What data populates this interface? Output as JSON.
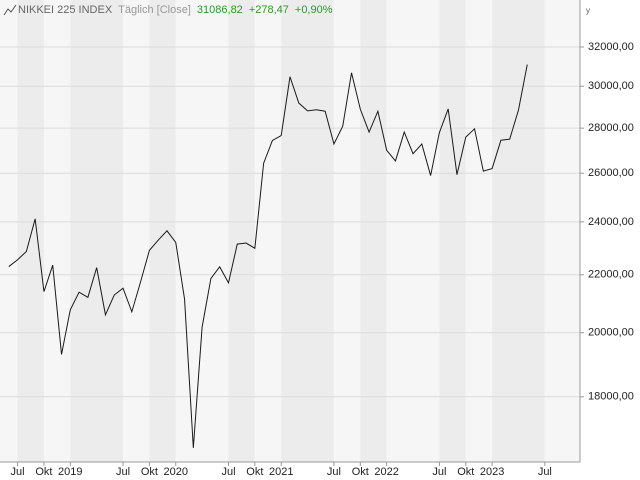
{
  "chart_data": {
    "type": "line",
    "title": "NIKKEI 225 INDEX",
    "subtitle": "Täglich [Close]",
    "last_value": "31086,82",
    "change": "+278,47",
    "change_pct": "+0,90%",
    "y_label": "y",
    "color": "#1a1a1a",
    "log_y": true,
    "grid": true,
    "x": [
      "2018-06",
      "2018-07",
      "2018-08",
      "2018-09",
      "2018-10",
      "2018-11",
      "2018-12",
      "2019-01",
      "2019-02",
      "2019-03",
      "2019-04",
      "2019-05",
      "2019-06",
      "2019-07",
      "2019-08",
      "2019-09",
      "2019-10",
      "2019-11",
      "2019-12",
      "2020-01",
      "2020-02",
      "2020-03",
      "2020-04",
      "2020-05",
      "2020-06",
      "2020-07",
      "2020-08",
      "2020-09",
      "2020-10",
      "2020-11",
      "2020-12",
      "2021-01",
      "2021-02",
      "2021-03",
      "2021-04",
      "2021-05",
      "2021-06",
      "2021-07",
      "2021-08",
      "2021-09",
      "2021-10",
      "2021-11",
      "2021-12",
      "2022-01",
      "2022-02",
      "2022-03",
      "2022-04",
      "2022-05",
      "2022-06",
      "2022-07",
      "2022-08",
      "2022-09",
      "2022-10",
      "2022-11",
      "2022-12",
      "2023-01",
      "2023-02",
      "2023-03",
      "2023-04",
      "2023-05"
    ],
    "values": [
      22300,
      22550,
      22860,
      24120,
      21400,
      22350,
      19300,
      20770,
      21380,
      21200,
      22260,
      20600,
      21280,
      21520,
      20700,
      21750,
      22900,
      23290,
      23650,
      23200,
      21140,
      16550,
      20190,
      21870,
      22290,
      21710,
      23140,
      23180,
      22980,
      26430,
      27440,
      27660,
      30470,
      29180,
      28810,
      28860,
      28790,
      27280,
      28090,
      30670,
      28890,
      27820,
      28790,
      27000,
      26530,
      27820,
      26850,
      27280,
      25900,
      27800,
      28900,
      25940,
      27590,
      27970,
      26090,
      26200,
      27450,
      27500,
      28850,
      31086.82
    ],
    "xlim": [
      "2018-05",
      "2023-11"
    ],
    "xticks": [
      {
        "value": "2018-07",
        "label": "Jul"
      },
      {
        "value": "2018-10",
        "label": "Okt"
      },
      {
        "value": "2019-01",
        "label": "2019"
      },
      {
        "value": "2019-07",
        "label": "Jul"
      },
      {
        "value": "2019-10",
        "label": "Okt"
      },
      {
        "value": "2020-01",
        "label": "2020"
      },
      {
        "value": "2020-07",
        "label": "Jul"
      },
      {
        "value": "2020-10",
        "label": "Okt"
      },
      {
        "value": "2021-01",
        "label": "2021"
      },
      {
        "value": "2021-07",
        "label": "Jul"
      },
      {
        "value": "2021-10",
        "label": "Okt"
      },
      {
        "value": "2022-01",
        "label": "2022"
      },
      {
        "value": "2022-07",
        "label": "Jul"
      },
      {
        "value": "2022-10",
        "label": "Okt"
      },
      {
        "value": "2023-01",
        "label": "2023"
      },
      {
        "value": "2023-07",
        "label": "Jul"
      }
    ],
    "ylim": [
      16170,
      34570
    ],
    "yticks": [
      {
        "value": 18000,
        "label": "18000,00"
      },
      {
        "value": 20000,
        "label": "20000,00"
      },
      {
        "value": 22000,
        "label": "22000,00"
      },
      {
        "value": 24000,
        "label": "24000,00"
      },
      {
        "value": 26000,
        "label": "26000,00"
      },
      {
        "value": 28000,
        "label": "28000,00"
      },
      {
        "value": 30000,
        "label": "30000,00"
      },
      {
        "value": 32000,
        "label": "32000,00"
      }
    ]
  }
}
